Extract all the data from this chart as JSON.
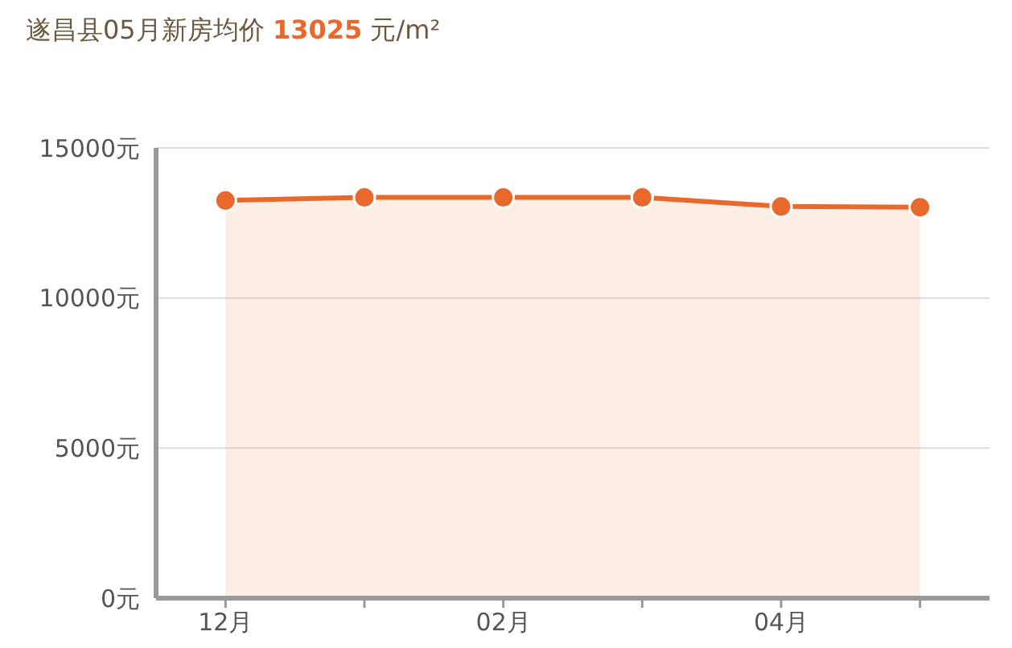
{
  "chart_data": {
    "type": "area",
    "title": "遂昌县05月新房均价 13025 元/m²",
    "categories": [
      "12月",
      null,
      "02月",
      null,
      "04月",
      null
    ],
    "series": [
      {
        "color": "#e8692b",
        "values": [
          13250,
          13350,
          13350,
          13350,
          13050,
          13025
        ]
      }
    ],
    "ylim": [
      0,
      15000
    ],
    "yticks": [
      {
        "value": 0,
        "label": "0元"
      },
      {
        "value": 5000,
        "label": "5000元"
      },
      {
        "value": 10000,
        "label": "10000元"
      },
      {
        "value": 15000,
        "label": "15000元"
      }
    ],
    "grid": "y",
    "marker": "circle"
  }
}
